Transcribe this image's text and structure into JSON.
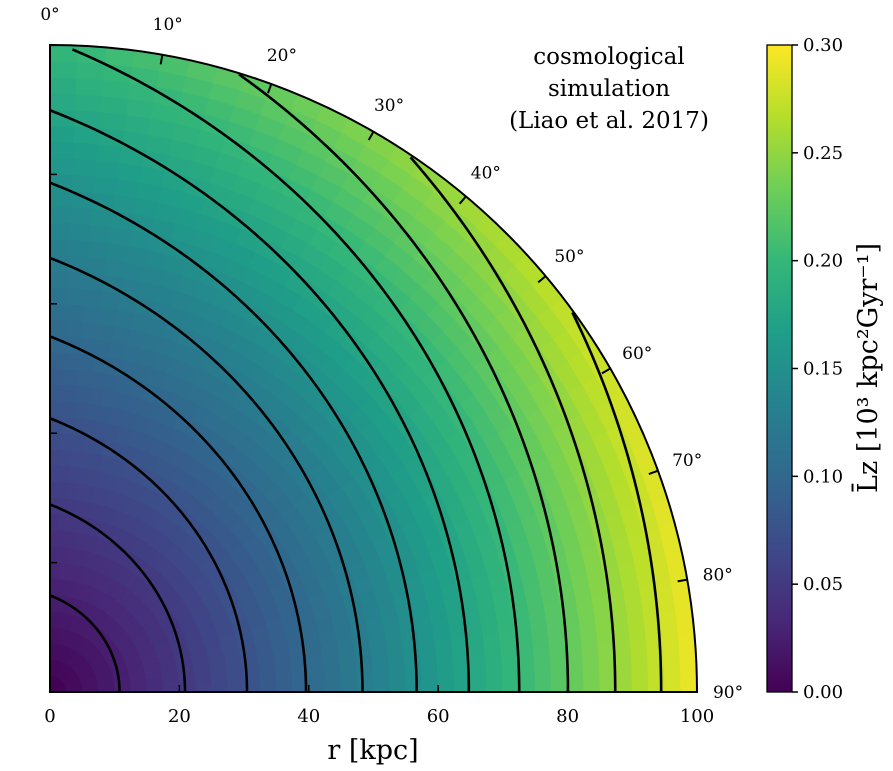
{
  "chart_data": {
    "type": "heatmap",
    "projection": "polar quarter (angle from vertical axis)",
    "xlabel": "r [kpc]",
    "x_ticks": [
      0,
      20,
      40,
      60,
      80,
      100
    ],
    "xlim": [
      0,
      100
    ],
    "angle_ticks": [
      "0°",
      "10°",
      "20°",
      "30°",
      "40°",
      "50°",
      "60°",
      "70°",
      "80°",
      "90°"
    ],
    "annotation": [
      "cosmological",
      "simulation",
      "(Liao et al. 2017)"
    ],
    "colorbar": {
      "label": "L̄z [10³ kpc²Gyr⁻¹]",
      "colormap": "viridis",
      "range": [
        0.0,
        0.3
      ],
      "ticks": [
        "0.00",
        "0.05",
        "0.10",
        "0.15",
        "0.20",
        "0.25",
        "0.30"
      ]
    },
    "contour_levels": [
      0.025,
      0.05,
      0.075,
      0.1,
      0.125,
      0.15,
      0.175,
      0.2,
      0.225,
      0.25,
      0.275
    ],
    "contour_r_at_90deg": [
      13,
      21,
      29,
      36,
      44,
      52,
      61,
      72,
      86
    ],
    "field_values_at_90deg": {
      "r": [
        0,
        20,
        40,
        60,
        80,
        100
      ],
      "value": [
        0.0,
        0.05,
        0.1,
        0.15,
        0.215,
        0.29
      ]
    },
    "colors": {
      "viridis": [
        "#440154",
        "#482878",
        "#3e4a89",
        "#31688e",
        "#26828e",
        "#1f9e89",
        "#35b779",
        "#6ece58",
        "#b5de2b",
        "#fde725"
      ],
      "contour": "#000000"
    }
  }
}
